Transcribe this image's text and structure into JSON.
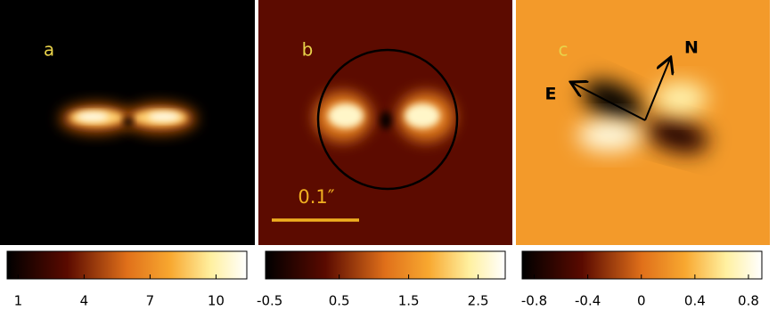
{
  "panels": [
    {
      "label": "a",
      "colorbar": {
        "lim": [
          0.5,
          11.4
        ],
        "ticks": [
          1,
          4,
          7,
          10
        ]
      }
    },
    {
      "label": "b",
      "colorbar": {
        "lim": [
          -0.56,
          2.89
        ],
        "ticks": [
          -0.5,
          0.5,
          1.5,
          2.5
        ]
      }
    },
    {
      "label": "c",
      "colorbar": {
        "lim": [
          -0.89,
          0.9
        ],
        "ticks": [
          -0.8,
          -0.4,
          0,
          0.4,
          0.8
        ]
      }
    }
  ],
  "scale_bar": "0.1″",
  "compass": {
    "north": "N",
    "east": "E"
  }
}
